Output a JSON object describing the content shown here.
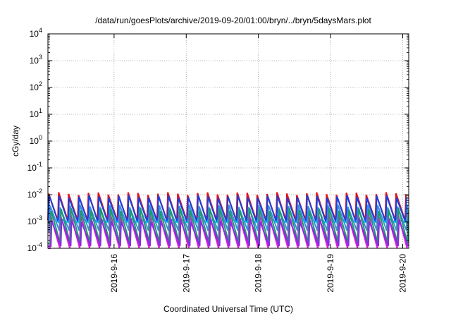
{
  "chart_data": {
    "type": "line",
    "title": "/data/run/goesPlots/archive/2019-09-20/01:00/bryn/../bryn/5daysMars.plot",
    "xlabel": "Coordinated Universal Time (UTC)",
    "ylabel": "cGy/day",
    "x_range": [
      "2019-09-15T02:00",
      "2019-09-20T02:00"
    ],
    "x_ticks": [
      {
        "label": "2019-9-16",
        "value": "2019-09-16T00:00"
      },
      {
        "label": "2019-9-17",
        "value": "2019-09-17T00:00"
      },
      {
        "label": "2019-9-18",
        "value": "2019-09-18T00:00"
      },
      {
        "label": "2019-9-19",
        "value": "2019-09-19T00:00"
      },
      {
        "label": "2019-9-20",
        "value": "2019-09-20T00:00"
      }
    ],
    "y_scale": "log",
    "ylim": [
      0.0001,
      10000
    ],
    "y_ticks": [
      {
        "base": "10",
        "exp": "-4",
        "value": 0.0001
      },
      {
        "base": "10",
        "exp": "-3",
        "value": 0.001
      },
      {
        "base": "10",
        "exp": "-2",
        "value": 0.01
      },
      {
        "base": "10",
        "exp": "-1",
        "value": 0.1
      },
      {
        "base": "10",
        "exp": "0",
        "value": 1
      },
      {
        "base": "10",
        "exp": "1",
        "value": 10
      },
      {
        "base": "10",
        "exp": "2",
        "value": 100
      },
      {
        "base": "10",
        "exp": "3",
        "value": 1000
      },
      {
        "base": "10",
        "exp": "4",
        "value": 10000
      }
    ],
    "grid": true,
    "series": [
      {
        "color": "#e0151f",
        "peak": 0.011,
        "trough": 0.0011,
        "phase": 0.0
      },
      {
        "color": "#1a3fe0",
        "peak": 0.0085,
        "trough": 0.0009,
        "phase": 0.05
      },
      {
        "color": "#00c8e8",
        "peak": 0.0014,
        "trough": 0.0009,
        "phase": 0.1
      },
      {
        "color": "#3b8fd6",
        "peak": 0.0038,
        "trough": 0.00045,
        "phase": 0.15
      },
      {
        "color": "#e01fd8",
        "peak": 0.0018,
        "trough": 0.0001,
        "phase": 0.2
      },
      {
        "color": "#1a9c6a",
        "peak": 0.0028,
        "trough": 0.00015,
        "phase": 0.25
      },
      {
        "color": "#8a2be2",
        "peak": 0.0011,
        "trough": 0.00012,
        "phase": 0.3
      }
    ],
    "cycle_hours": 3.3
  }
}
